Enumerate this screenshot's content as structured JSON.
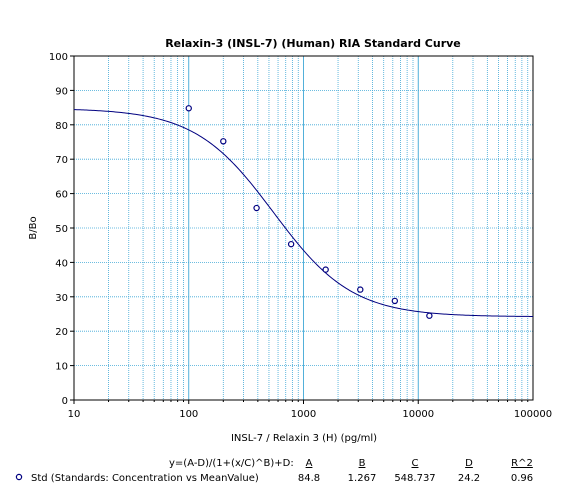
{
  "chart_data": {
    "type": "scatter",
    "title": "Relaxin-3 (INSL-7) (Human) RIA  Standard Curve",
    "xlabel": "INSL-7 / Relaxin 3 (H) (pg/ml)",
    "ylabel": "B/Bo",
    "x_scale": "log",
    "xlim": [
      10,
      100000
    ],
    "ylim": [
      0,
      100
    ],
    "x_ticks": [
      "10",
      "100",
      "1000",
      "10000",
      "100000"
    ],
    "y_ticks": [
      "0",
      "10",
      "20",
      "30",
      "40",
      "50",
      "60",
      "70",
      "80",
      "90",
      "100"
    ],
    "grid": true,
    "colors": {
      "series": "#000080",
      "grid": "#3fa7d6"
    },
    "series": [
      {
        "name": "Std (Standards: Concentration vs MeanValue)",
        "x": [
          100,
          200,
          390,
          780,
          1560,
          3125,
          6250,
          12500
        ],
        "y": [
          84.8,
          75.2,
          55.8,
          45.3,
          37.9,
          32.1,
          28.8,
          24.5
        ]
      }
    ],
    "fit": {
      "equation": "y=(A-D)/(1+(x/C)^B)+D:",
      "A": 84.8,
      "B": 1.267,
      "C": 548.737,
      "D": 24.2
    }
  },
  "legend": {
    "equation": "y=(A-D)/(1+(x/C)^B)+D:",
    "headers": [
      "A",
      "B",
      "C",
      "D",
      "R^2"
    ],
    "row": {
      "label": "Std (Standards: Concentration vs MeanValue)",
      "values": [
        "84.8",
        "1.267",
        "548.737",
        "24.2",
        "0.96"
      ]
    }
  }
}
